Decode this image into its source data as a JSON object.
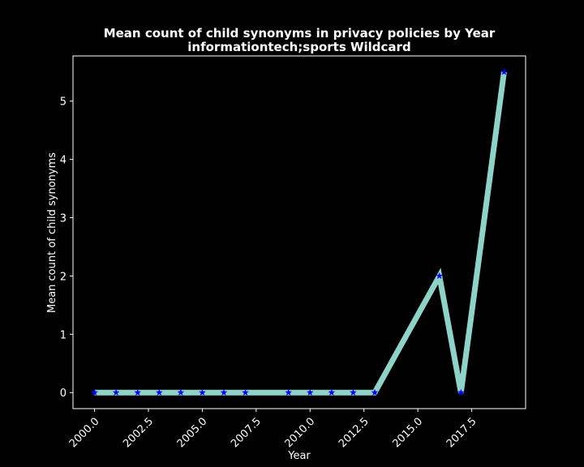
{
  "chart_data": {
    "type": "line",
    "title": "Mean count of child synonyms in privacy policies by Year",
    "subtitle": "informationtech;sports Wildcard",
    "xlabel": "Year",
    "ylabel": "Mean count of child synonyms",
    "x_ticks": [
      "2000.0",
      "2002.5",
      "2005.0",
      "2007.5",
      "2010.0",
      "2012.5",
      "2015.0",
      "2017.5"
    ],
    "y_ticks": [
      "0",
      "1",
      "2",
      "3",
      "4",
      "5"
    ],
    "xlim": [
      1999,
      2020.0
    ],
    "ylim": [
      -0.275,
      5.775
    ],
    "grid": false,
    "series": [
      {
        "x": [
          2000,
          2001,
          2002,
          2003,
          2004,
          2005,
          2006,
          2007,
          2009,
          2010,
          2011,
          2012,
          2013,
          2016,
          2017,
          2019
        ],
        "y": [
          0,
          0,
          0,
          0,
          0,
          0,
          0,
          0,
          0,
          0,
          0,
          0,
          0,
          2,
          0,
          5.5
        ]
      }
    ],
    "colors": {
      "line": "#8dd3c7",
      "marker": "#0000ff",
      "background": "#000000",
      "foreground": "#ffffff"
    }
  }
}
